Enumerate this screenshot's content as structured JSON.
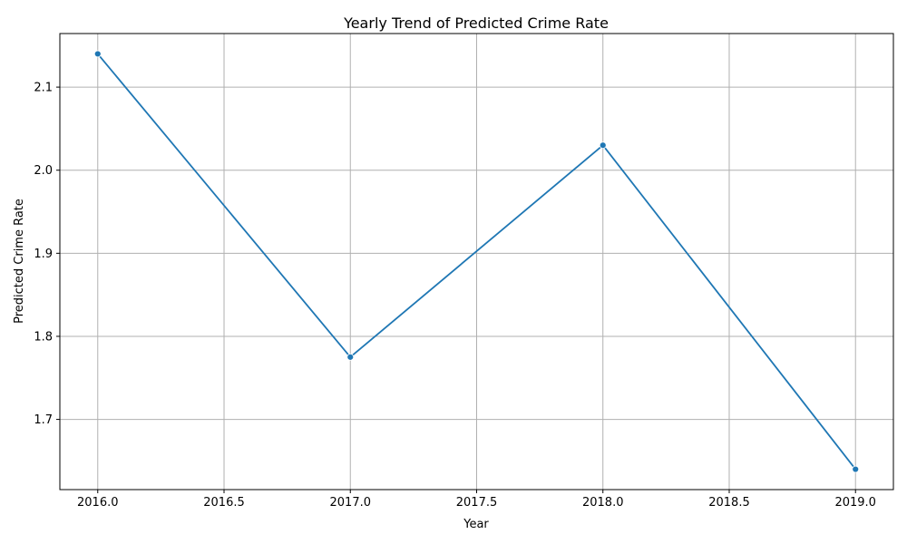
{
  "chart_data": {
    "type": "line",
    "title": "Yearly Trend of Predicted Crime Rate",
    "xlabel": "Year",
    "ylabel": "Predicted Crime Rate",
    "x": [
      2016,
      2017,
      2018,
      2019
    ],
    "series": [
      {
        "values": [
          2.14,
          1.775,
          2.03,
          1.64
        ],
        "color": "#1f77b4",
        "marker": "circle"
      }
    ],
    "xlim": [
      2015.85,
      2019.15
    ],
    "ylim": [
      1.6155,
      2.1645
    ],
    "x_ticks": [
      2016.0,
      2016.5,
      2017.0,
      2017.5,
      2018.0,
      2018.5,
      2019.0
    ],
    "x_tick_labels": [
      "2016.0",
      "2016.5",
      "2017.0",
      "2017.5",
      "2018.0",
      "2018.5",
      "2019.0"
    ],
    "y_ticks": [
      1.7,
      1.8,
      1.9,
      2.0,
      2.1
    ],
    "y_tick_labels": [
      "1.7",
      "1.8",
      "1.9",
      "2.0",
      "2.1"
    ],
    "grid": true
  }
}
